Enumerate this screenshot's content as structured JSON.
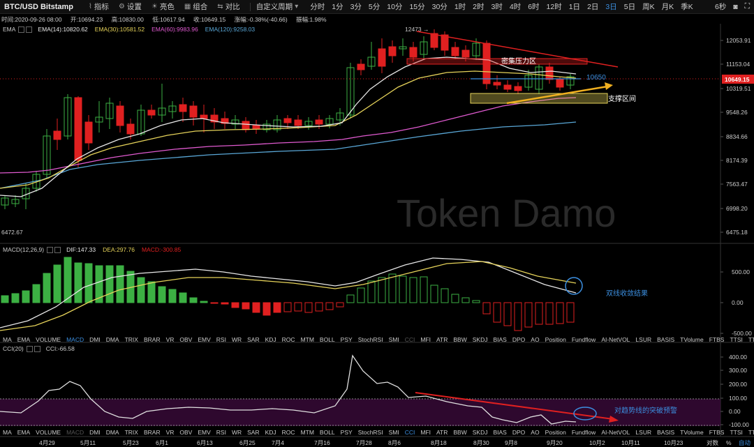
{
  "toolbar": {
    "pair": "BTC/USD Bitstamp",
    "buttons": [
      {
        "label": "指标",
        "icon": "indicator-icon"
      },
      {
        "label": "设置",
        "icon": "gear-icon"
      },
      {
        "label": "亮色",
        "icon": "brightness-icon"
      },
      {
        "label": "组合",
        "icon": "layout-icon"
      },
      {
        "label": "对比",
        "icon": "compare-icon"
      }
    ],
    "custom_period": "自定义周期",
    "periods": [
      "分时",
      "1分",
      "3分",
      "5分",
      "10分",
      "15分",
      "30分",
      "1时",
      "2时",
      "3时",
      "4时",
      "6时",
      "12时",
      "1日",
      "2日",
      "3日",
      "5日",
      "周K",
      "月K",
      "季K"
    ],
    "active_period": "3日",
    "countdown": "6秒"
  },
  "ohlc": {
    "time": "时间:2020-09-26 08:00",
    "open": "开:10694.23",
    "high": "高:10830.00",
    "low": "低:10617.94",
    "close": "收:10649.15",
    "change": "涨幅:-0.38%(-40.66)",
    "amplitude": "振幅:1.98%"
  },
  "ema_header": {
    "name": "EMA",
    "values": [
      {
        "text": "EMA(14):10820.62",
        "color": "#e8e8e8"
      },
      {
        "text": "EMA(30):10581.52",
        "color": "#e6d35a"
      },
      {
        "text": "EMA(60):9983.96",
        "color": "#e05ad0"
      },
      {
        "text": "EMA(120):9258.03",
        "color": "#5aa8d8"
      }
    ]
  },
  "price_axis": {
    "labels": [
      "12053.91",
      "11153.04",
      "10319.51",
      "9548.26",
      "8834.66",
      "8174.39",
      "7563.47",
      "6998.20",
      "6475.18"
    ],
    "last_price": "10649.15",
    "last_price_color": "#e02020",
    "min_label": "6472.67",
    "max_label": "12473"
  },
  "watermark": "Token Damo",
  "annotations": {
    "resistance": "密集压力区",
    "support": "支撑区间",
    "level": "10650",
    "macd_note": "双线收敛结果",
    "cci_note": "对趋势线的突破预警"
  },
  "macd_header": {
    "name": "MACD(12,26,9)",
    "dif": "DIF:147.33",
    "dea": "DEA:297.76",
    "macd": "MACD:-300.85",
    "dif_color": "#e8e8e8",
    "dea_color": "#e6d35a",
    "macd_color": "#e02020"
  },
  "macd_axis": [
    "500.00",
    "0.00",
    "-500.00"
  ],
  "indicator_tabs": [
    "MA",
    "EMA",
    "VOLUME",
    "MACD",
    "DMI",
    "DMA",
    "TRIX",
    "BRAR",
    "VR",
    "OBV",
    "EMV",
    "RSI",
    "WR",
    "SAR",
    "KDJ",
    "ROC",
    "MTM",
    "BOLL",
    "PSY",
    "StochRSI",
    "SMI",
    "CCI",
    "MFI",
    "ATR",
    "BBW",
    "SKDJ",
    "BIAS",
    "DPO",
    "AO",
    "Position",
    "Fundflow",
    "AI-NetVOL",
    "LSUR",
    "BASIS",
    "TVolume",
    "FTBS",
    "TTSI",
    "TTMU"
  ],
  "indicator_tabs_active": "MACD",
  "indicator_tabs_dim": "CCI",
  "cci_header": {
    "name": "CCI(20)",
    "value": "CCI:-66.58"
  },
  "cci_axis": [
    "400.00",
    "300.00",
    "200.00",
    "100.00",
    "0.00",
    "-100.00"
  ],
  "bottom_tabs_active": "CCI",
  "bottom_tabs_dim": "MACD",
  "date_axis": [
    "4月29",
    "5月11",
    "5月23",
    "6月1",
    "6月13",
    "6月25",
    "7月4",
    "7月16",
    "7月28",
    "8月6",
    "8月18",
    "8月30",
    "9月8",
    "9月20",
    "10月2",
    "10月11",
    "10月23"
  ],
  "footer": {
    "zoom": "对数",
    "pct": "%",
    "auto": "自动"
  },
  "colors": {
    "up": "#3cb043",
    "down": "#e02020",
    "accent": "#3c8fe0"
  }
}
